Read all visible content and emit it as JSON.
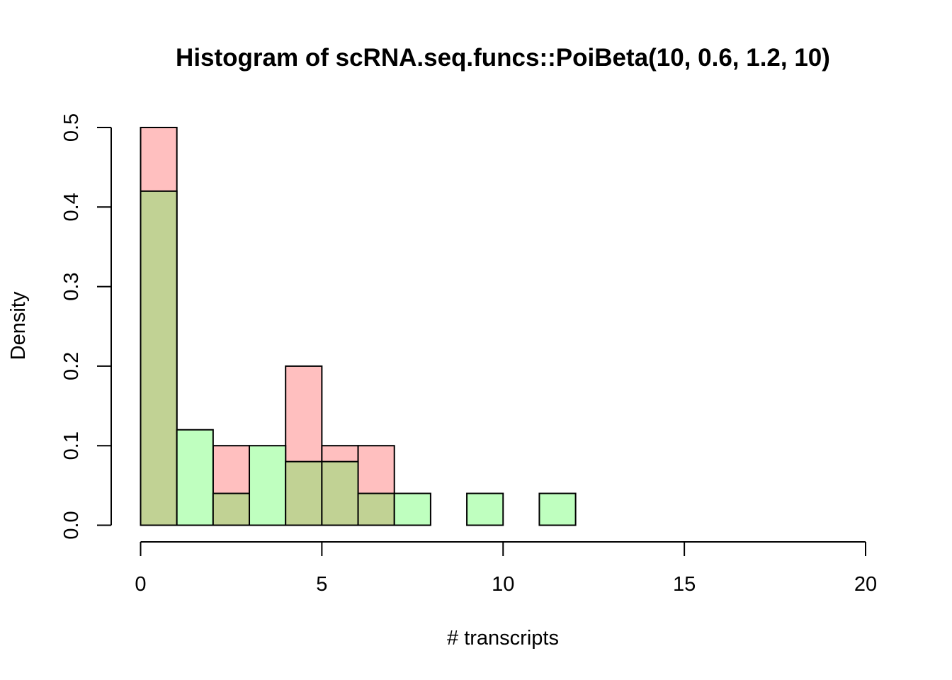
{
  "chart_data": {
    "type": "bar",
    "title": "Histogram of scRNA.seq.funcs::PoiBeta(10, 0.6, 1.2, 10)",
    "xlabel": "# transcripts",
    "ylabel": "Density",
    "xlim": [
      0,
      20
    ],
    "ylim": [
      0,
      0.5
    ],
    "x_ticks": [
      0,
      5,
      10,
      15,
      20
    ],
    "y_ticks": [
      0.0,
      0.1,
      0.2,
      0.3,
      0.4,
      0.5
    ],
    "y_tick_labels": [
      "0.0",
      "0.1",
      "0.2",
      "0.3",
      "0.4",
      "0.5"
    ],
    "bin_edges": [
      0,
      1,
      2,
      3,
      4,
      5,
      6,
      7,
      8,
      9,
      10,
      11,
      12,
      13,
      14,
      15,
      16,
      17,
      18,
      19,
      20
    ],
    "series": [
      {
        "color": "#FFBFBF",
        "values": [
          0.5,
          0,
          0.1,
          0,
          0.2,
          0.1,
          0.1,
          0,
          0,
          0,
          0,
          0,
          0,
          0,
          0,
          0,
          0,
          0,
          0,
          0
        ]
      },
      {
        "color": "#BFFFBF",
        "values": [
          0.42,
          0.12,
          0.04,
          0.1,
          0.08,
          0.08,
          0.04,
          0.04,
          0,
          0.04,
          0,
          0.04,
          0,
          0,
          0,
          0,
          0,
          0,
          0,
          0
        ]
      }
    ],
    "overlap_color": "#C1D294",
    "grid": false,
    "legend": "none"
  }
}
